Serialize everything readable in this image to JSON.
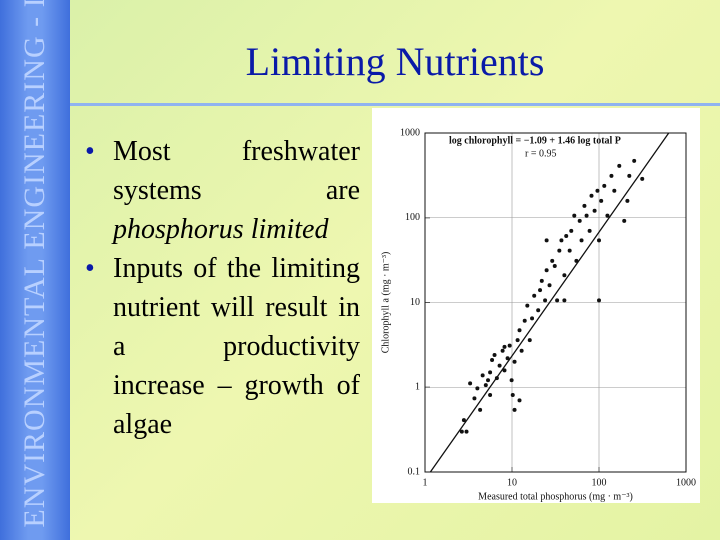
{
  "sidebar": {
    "text": "ENVIRONMENTAL ENGINEERING - I"
  },
  "title": "Limiting Nutrients",
  "bullets": [
    {
      "text": "Most freshwater systems are",
      "emphasis": "phosphorus limited"
    },
    {
      "text": "Inputs of the limiting nutrient will result in a productivity increase – growth of algae"
    }
  ],
  "chart_data": {
    "type": "scatter",
    "x_label": "Measured total phosphorus (mg · m⁻³)",
    "y_label": "Chlorophyll a (mg · m⁻³)",
    "annotations": [
      "log chlorophyll = −1.09 + 1.46 log total P",
      "r = 0.95"
    ],
    "fit_line": {
      "intercept": -1.09,
      "slope": 1.46
    },
    "log_x": true,
    "log_y": true,
    "grid": true,
    "color": "#111111",
    "xlim": [
      1,
      1000
    ],
    "ylim": [
      0.1,
      1000
    ],
    "xticks": [
      1,
      10,
      100,
      1000
    ],
    "yticks": [
      0.1,
      1,
      10,
      100,
      1000
    ],
    "x": [
      2.65,
      2.8,
      3.0,
      3.3,
      3.7,
      4.0,
      4.6,
      5.0,
      5.3,
      5.6,
      5.9,
      6.3,
      6.7,
      7.2,
      7.8,
      8.2,
      8.2,
      8.9,
      9.4,
      9.9,
      10.2,
      10.7,
      11.6,
      12.2,
      12.9,
      14,
      15,
      16,
      17,
      18,
      20,
      21,
      22,
      24,
      25,
      27,
      29,
      31,
      33,
      35,
      37,
      40,
      42,
      46,
      48,
      52,
      55,
      60,
      63,
      68,
      72,
      78,
      82,
      89,
      96,
      100,
      106,
      115,
      125,
      139,
      150,
      171,
      195,
      212,
      223,
      254,
      314,
      100,
      12.2,
      10.7,
      4.3,
      5.6,
      25,
      40
    ],
    "values": [
      0.3,
      0.41,
      0.3,
      1.11,
      0.74,
      0.97,
      1.38,
      1.06,
      1.21,
      1.5,
      2.1,
      2.4,
      1.28,
      1.8,
      2.7,
      3.0,
      1.58,
      2.2,
      3.1,
      1.21,
      0.81,
      2.0,
      3.6,
      4.7,
      2.7,
      6.1,
      9.2,
      3.6,
      6.5,
      12,
      8.1,
      14,
      18,
      10.6,
      24,
      16,
      31,
      27,
      10.6,
      41,
      54,
      21,
      61,
      41,
      70,
      106,
      31,
      92,
      54,
      138,
      106,
      70,
      182,
      121,
      208,
      54,
      158,
      238,
      106,
      312,
      208,
      409,
      92,
      158,
      312,
      469,
      288,
      10.6,
      0.7,
      0.54,
      0.54,
      0.81,
      54,
      10.6
    ]
  }
}
